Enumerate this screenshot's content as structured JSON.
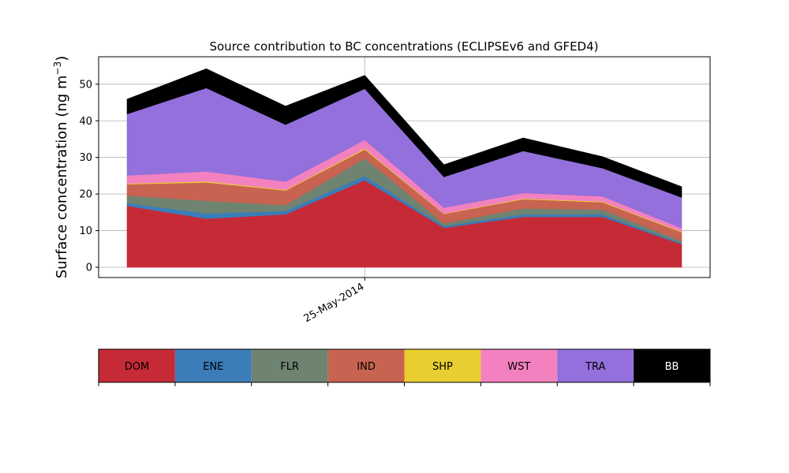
{
  "chart_data": {
    "type": "area",
    "stacked": true,
    "title": "Source contribution to BC concentrations (ECLIPSEv6 and GFED4)",
    "ylabel": "Surface concentration (ng m",
    "ylabel_sup": "−3",
    "ylabel_close": ")",
    "ylim": [
      -2.8,
      57.5
    ],
    "yticks": [
      0,
      10,
      20,
      30,
      40,
      50
    ],
    "ytick_labels": [
      "0",
      "10",
      "20",
      "30",
      "40",
      "50"
    ],
    "xlim": [
      -0.36,
      7.36
    ],
    "x": [
      0,
      1,
      2,
      3,
      4,
      5,
      6,
      7
    ],
    "xticks": [
      3
    ],
    "xtick_labels": [
      "25-May-2014"
    ],
    "grid": true,
    "legend_position": "below",
    "series": [
      {
        "name": "DOM",
        "color": "#c62a36",
        "values": [
          16.8,
          13.3,
          14.5,
          23.8,
          10.8,
          13.8,
          13.8,
          6.3
        ]
      },
      {
        "name": "ENE",
        "color": "#3a7db8",
        "values": [
          0.8,
          1.4,
          0.9,
          1.2,
          0.5,
          0.7,
          0.7,
          0.3
        ]
      },
      {
        "name": "FLR",
        "color": "#6f8371",
        "values": [
          2.0,
          3.5,
          1.6,
          4.8,
          0.7,
          1.6,
          1.3,
          0.6
        ]
      },
      {
        "name": "IND",
        "color": "#c86351",
        "values": [
          3.1,
          5.0,
          4.0,
          2.4,
          2.6,
          2.5,
          2.0,
          2.4
        ]
      },
      {
        "name": "SHP",
        "color": "#e8ce30",
        "values": [
          0.2,
          0.3,
          0.2,
          0.3,
          0.1,
          0.2,
          0.2,
          0.2
        ]
      },
      {
        "name": "WST",
        "color": "#f381bf",
        "values": [
          2.2,
          2.7,
          2.2,
          2.3,
          1.6,
          1.5,
          1.4,
          0.9
        ]
      },
      {
        "name": "TRA",
        "color": "#9370db",
        "values": [
          16.8,
          22.8,
          15.6,
          14.0,
          8.4,
          11.5,
          7.7,
          8.4
        ]
      },
      {
        "name": "BB",
        "color": "#000000",
        "values": [
          4.0,
          5.2,
          5.0,
          3.6,
          3.3,
          3.5,
          3.1,
          2.9
        ]
      }
    ]
  }
}
